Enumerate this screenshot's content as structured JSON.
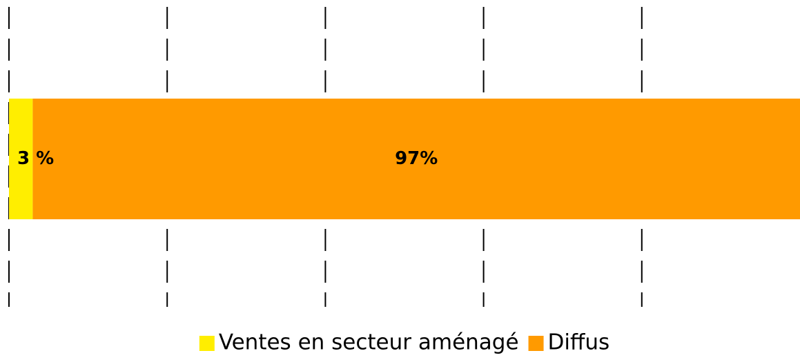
{
  "chart_data": {
    "type": "stacked-bar-horizontal",
    "categories": [
      null
    ],
    "series": [
      {
        "name": "Ventes en secteur aménagé",
        "color": "#ffee00",
        "values": [
          3
        ],
        "value_labels": [
          "3 %"
        ]
      },
      {
        "name": "Diffus",
        "color": "#ff9a00",
        "values": [
          97
        ],
        "value_labels": [
          "97%"
        ]
      }
    ],
    "xlim": [
      0,
      100
    ],
    "xticks": [
      0,
      20,
      40,
      60,
      80
    ],
    "grid": true,
    "legend": "bottom"
  }
}
